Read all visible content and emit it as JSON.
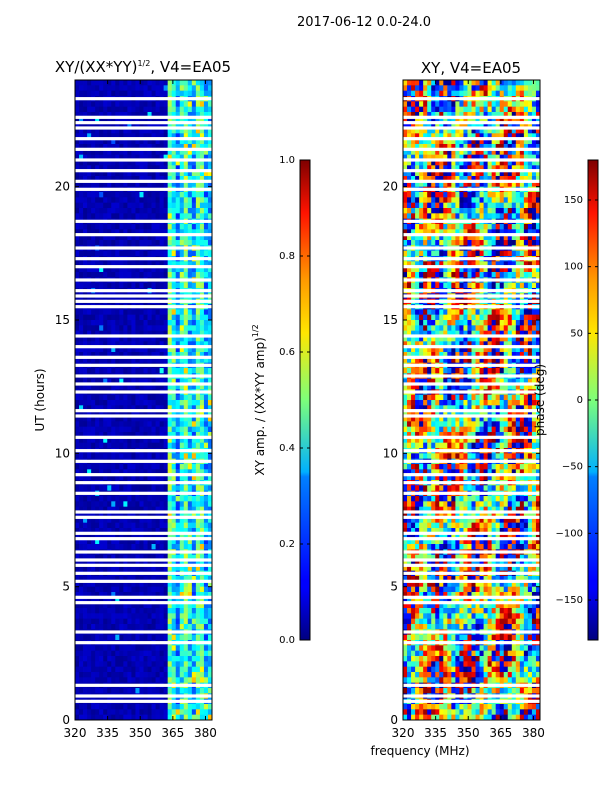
{
  "figure": {
    "suptitle": "2017-06-12 0.0-24.0",
    "xlabel": "frequency (MHz)"
  },
  "left_panel": {
    "title_main": "XY/(XX*YY)",
    "title_exp": "1/2",
    "title_tail": ", V4=EA05",
    "ylabel": "UT (hours)"
  },
  "right_panel": {
    "title": "XY, V4=EA05"
  },
  "amp_colorbar": {
    "label_main": "XY amp. / (XX*YY amp)",
    "label_exp": "1/2"
  },
  "phase_colorbar": {
    "label": "phase (deg)"
  },
  "colors": {
    "jet_low": "#00007f",
    "jet_high": "#7f0000",
    "background": "#ffffff"
  },
  "chart_data": [
    {
      "type": "heatmap",
      "name": "amplitude",
      "xlim": [
        320,
        383
      ],
      "ylim": [
        0,
        24
      ],
      "xticks": [
        320,
        335,
        350,
        365,
        380
      ],
      "yticks": [
        0,
        5,
        10,
        15,
        20
      ],
      "colorbar": {
        "vmin": 0.0,
        "vmax": 1.0,
        "ticks": [
          "0.0",
          "0.2",
          "0.4",
          "0.6",
          "0.8",
          "1.0"
        ]
      },
      "flagged_hours": [
        0.7,
        0.9,
        1.3,
        2.9,
        3.3,
        4.4,
        4.6,
        5.2,
        5.5,
        5.8,
        6.0,
        6.3,
        6.8,
        7.0,
        7.6,
        7.8,
        8.5,
        8.9,
        9.2,
        9.7,
        10.1,
        10.6,
        11.4,
        11.6,
        12.3,
        12.6,
        12.9,
        13.3,
        13.6,
        14.0,
        14.4,
        15.5,
        15.7,
        15.9,
        16.1,
        16.5,
        17.0,
        17.3,
        17.7,
        18.2,
        18.7,
        19.9,
        20.2,
        20.6,
        21.0,
        21.4,
        21.8,
        22.2,
        22.4,
        22.6,
        23.3
      ]
    },
    {
      "type": "heatmap",
      "name": "phase",
      "xlim": [
        320,
        383
      ],
      "ylim": [
        0,
        24
      ],
      "xticks": [
        320,
        335,
        350,
        365,
        380
      ],
      "yticks": [
        0,
        5,
        10,
        15,
        20
      ],
      "colorbar": {
        "vmin": -180,
        "vmax": 180,
        "ticks": [
          "−150",
          "−100",
          "−50",
          "0",
          "50",
          "100",
          "150"
        ]
      },
      "flagged_hours": [
        0.7,
        0.9,
        1.3,
        2.9,
        3.3,
        4.4,
        4.6,
        5.2,
        5.5,
        5.8,
        6.0,
        6.3,
        6.8,
        7.0,
        7.6,
        7.8,
        8.5,
        8.9,
        9.2,
        9.7,
        10.1,
        10.6,
        11.4,
        11.6,
        12.3,
        12.6,
        12.9,
        13.3,
        13.6,
        14.0,
        14.4,
        15.5,
        15.7,
        15.9,
        16.1,
        16.5,
        17.0,
        17.3,
        17.7,
        18.2,
        18.7,
        19.9,
        20.2,
        20.6,
        21.0,
        21.4,
        21.8,
        22.2,
        22.4,
        22.6,
        23.3
      ]
    }
  ]
}
